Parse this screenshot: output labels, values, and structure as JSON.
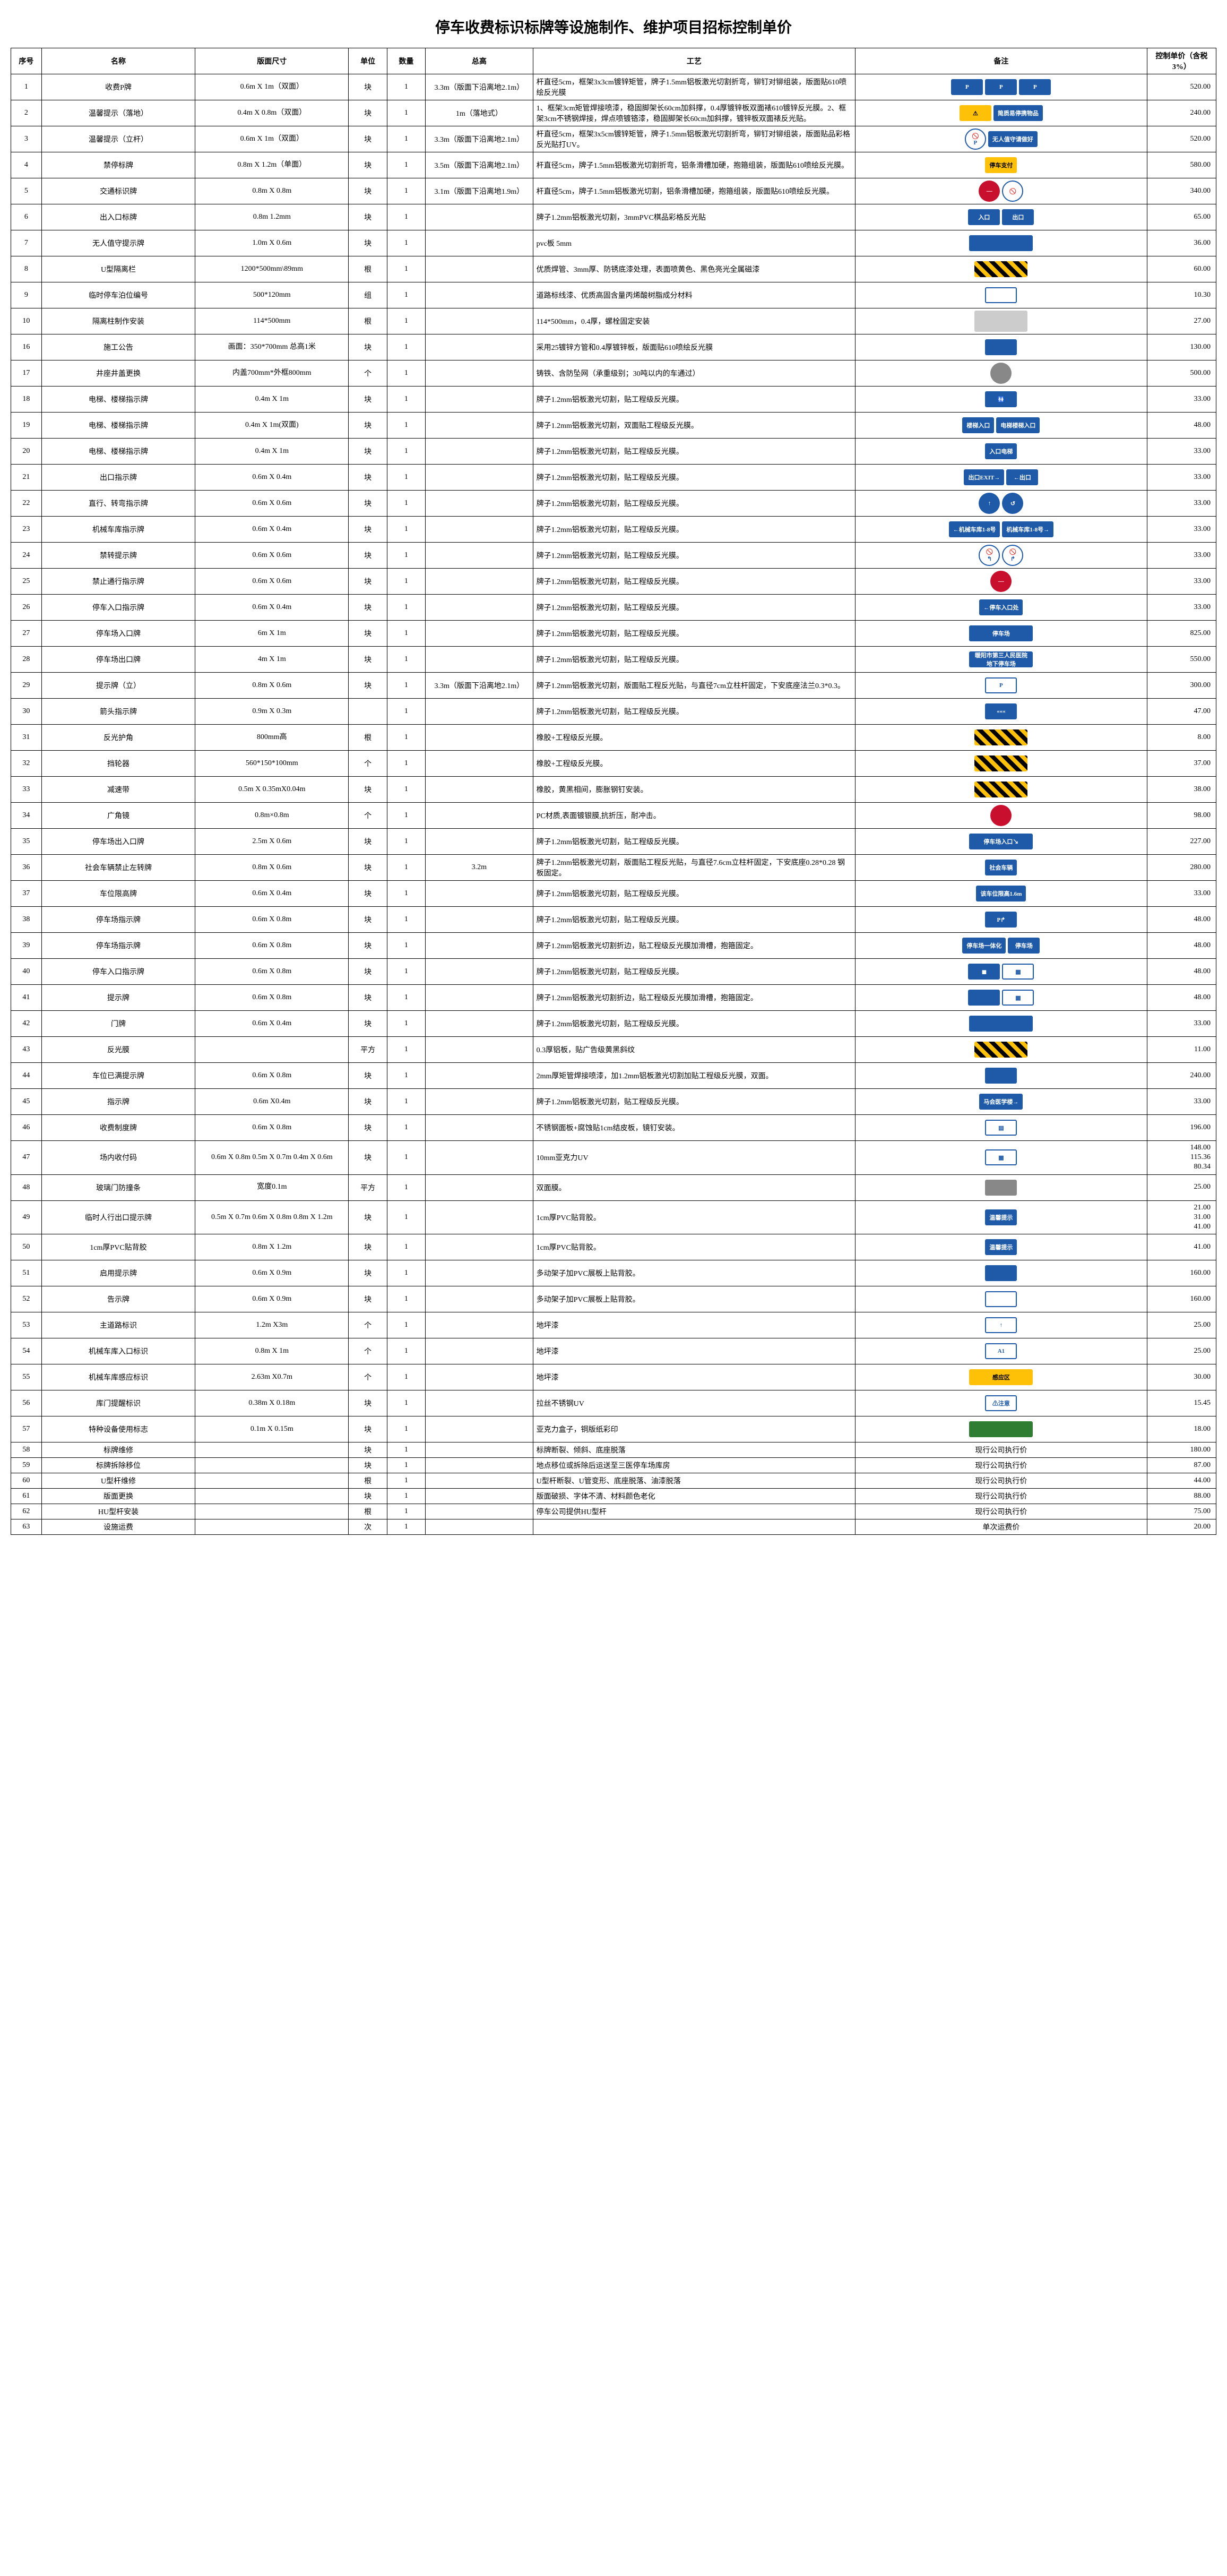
{
  "title": "停车收费标识标牌等设施制作、维护项目招标控制单价",
  "headers": {
    "seq": "序号",
    "name": "名称",
    "size": "版面尺寸",
    "unit": "单位",
    "qty": "数量",
    "total": "总高",
    "process": "工艺",
    "remark": "备注",
    "price": "控制单价（含税3%）"
  },
  "rows": [
    {
      "seq": "1",
      "name": "收费P牌",
      "size": "0.6m X 1m（双面）",
      "unit": "块",
      "qty": "1",
      "total": "3.3m（版面下沿离地2.1m）",
      "process": "杆直径5cm，框架3x3cm镀锌矩管，牌子1.5mm铝板激光切割折弯，铆钉对铆组装，版面贴610喷绘反光膜",
      "price": "520.00",
      "signs": [
        {
          "cls": "sign-blue",
          "txt": "P"
        },
        {
          "cls": "sign-blue",
          "txt": "P"
        },
        {
          "cls": "sign-blue",
          "txt": "P"
        }
      ]
    },
    {
      "seq": "2",
      "name": "温馨提示（落地）",
      "size": "0.4m X 0.8m（双面）",
      "unit": "块",
      "qty": "1",
      "total": "1m（落地式）",
      "process": "1、框架3cm矩管焊接喷漆，稳固脚架长60cm加斜撑，0.4厚镀锌板双面裱610镀锌反光膜。2、框架3cm不锈钢焊接，焊点喷镀铬漆，稳固脚架长60cm加斜撑，镀锌板双面裱反光贴。",
      "price": "240.00",
      "signs": [
        {
          "cls": "sign-yellow",
          "txt": "⚠"
        },
        {
          "cls": "sign-blue",
          "txt": "简质易停携物品"
        }
      ]
    },
    {
      "seq": "3",
      "name": "温馨提示（立杆）",
      "size": "0.6m X 1m（双面）",
      "unit": "块",
      "qty": "1",
      "total": "3.3m（版面下沿离地2.1m）",
      "process": "杆直径5cm，框架3x5cm镀锌矩管，牌子1.5mm铝板激光切割折弯，铆钉对铆组装，版面贴品彩格反光贴打UV。",
      "price": "520.00",
      "signs": [
        {
          "cls": "sign-white sign-circle",
          "txt": "🚫P"
        },
        {
          "cls": "sign-blue",
          "txt": "无人值守请做好"
        }
      ]
    },
    {
      "seq": "4",
      "name": "禁停标牌",
      "size": "0.8m X 1.2m（单面）",
      "unit": "块",
      "qty": "1",
      "total": "3.5m（版面下沿离地2.1m）",
      "process": "杆直径5cm，牌子1.5mm铝板激光切割折弯，铝条滑槽加硬，抱箍组装，版面贴610喷绘反光膜。",
      "price": "580.00",
      "signs": [
        {
          "cls": "sign-yellow",
          "txt": "停车支付"
        }
      ]
    },
    {
      "seq": "5",
      "name": "交通标识牌",
      "size": "0.8m X 0.8m",
      "unit": "块",
      "qty": "1",
      "total": "3.1m（版面下沿离地1.9m）",
      "process": "杆直径5cm，牌子1.5mm铝板激光切割，铝条滑槽加硬，抱箍组装，版面贴610喷绘反光膜。",
      "price": "340.00",
      "signs": [
        {
          "cls": "sign-red sign-circle",
          "txt": "—"
        },
        {
          "cls": "sign-white sign-circle",
          "txt": "🚫"
        }
      ]
    },
    {
      "seq": "6",
      "name": "出入口标牌",
      "size": "0.8m 1.2mm",
      "unit": "块",
      "qty": "1",
      "total": "",
      "process": "牌子1.2mm铝板激光切割，3mmPVC棋品彩格反光贴",
      "price": "65.00",
      "signs": [
        {
          "cls": "sign-blue",
          "txt": "入口"
        },
        {
          "cls": "sign-blue",
          "txt": "出口"
        }
      ]
    },
    {
      "seq": "7",
      "name": "无人值守提示牌",
      "size": "1.0m X 0.6m",
      "unit": "块",
      "qty": "1",
      "total": "",
      "process": "pvc板 5mm",
      "price": "36.00",
      "signs": [
        {
          "cls": "sign-blue sign-rect",
          "txt": ""
        }
      ]
    },
    {
      "seq": "8",
      "name": "U型隔离栏",
      "size": "1200*500mm\\89mm",
      "unit": "根",
      "qty": "1",
      "total": "",
      "process": "优质焊管、3mm厚、防锈底漆处理，表面喷黄色、黑色亮光全属磁漆",
      "price": "60.00",
      "signs": [
        {
          "cls": "sign-stripe",
          "txt": ""
        }
      ]
    },
    {
      "seq": "9",
      "name": "临时停车泊位编号",
      "size": "500*120mm",
      "unit": "组",
      "qty": "1",
      "total": "",
      "process": "道路标线漆、优质高固含量丙烯酸树脂成分材料",
      "price": "10.30",
      "signs": [
        {
          "cls": "sign-white",
          "txt": ""
        }
      ]
    },
    {
      "seq": "10",
      "name": "隔离柱制作安装",
      "size": "114*500mm",
      "unit": "根",
      "qty": "1",
      "total": "",
      "process": "114*500mm，0.4厚，螺栓固定安装",
      "price": "27.00",
      "signs": [
        {
          "cls": "photo",
          "txt": ""
        }
      ]
    },
    {
      "seq": "16",
      "name": "施工公告",
      "size": "画面：350*700mm 总高1米",
      "unit": "块",
      "qty": "1",
      "total": "",
      "process": "采用25镀锌方管和0.4厚镀锌板，版面贴610喷绘反光膜",
      "price": "130.00",
      "signs": [
        {
          "cls": "sign-blue",
          "txt": ""
        }
      ]
    },
    {
      "seq": "17",
      "name": "井座井盖更换",
      "size": "内盖700mm*外框800mm",
      "unit": "个",
      "qty": "1",
      "total": "",
      "process": "铸铁、含防坠网（承重级别；30吨以内的车通过）",
      "price": "500.00",
      "signs": [
        {
          "cls": "sign-gray sign-circle",
          "txt": ""
        }
      ]
    },
    {
      "seq": "18",
      "name": "电梯、楼梯指示牌",
      "size": "0.4m X 1m",
      "unit": "块",
      "qty": "1",
      "total": "",
      "process": "牌子1.2mm铝板激光切割，贴工程级反光膜。",
      "price": "33.00",
      "signs": [
        {
          "cls": "sign-blue",
          "txt": "🚻"
        }
      ]
    },
    {
      "seq": "19",
      "name": "电梯、楼梯指示牌",
      "size": "0.4m X 1m(双面)",
      "unit": "块",
      "qty": "1",
      "total": "",
      "process": "牌子1.2mm铝板激光切割，双面贴工程级反光膜。",
      "price": "48.00",
      "signs": [
        {
          "cls": "sign-blue",
          "txt": "楼梯入口"
        },
        {
          "cls": "sign-blue",
          "txt": "电梯楼梯入口"
        }
      ]
    },
    {
      "seq": "20",
      "name": "电梯、楼梯指示牌",
      "size": "0.4m X 1m",
      "unit": "块",
      "qty": "1",
      "total": "",
      "process": "牌子1.2mm铝板激光切割，贴工程级反光膜。",
      "price": "33.00",
      "signs": [
        {
          "cls": "sign-blue",
          "txt": "入口电梯"
        }
      ]
    },
    {
      "seq": "21",
      "name": "出口指示牌",
      "size": "0.6m X 0.4m",
      "unit": "块",
      "qty": "1",
      "total": "",
      "process": "牌子1.2mm铝板激光切割，贴工程级反光膜。",
      "price": "33.00",
      "signs": [
        {
          "cls": "sign-blue",
          "txt": "出口EXIT→"
        },
        {
          "cls": "sign-blue",
          "txt": "←出口"
        }
      ]
    },
    {
      "seq": "22",
      "name": "直行、转弯指示牌",
      "size": "0.6m X 0.6m",
      "unit": "块",
      "qty": "1",
      "total": "",
      "process": "牌子1.2mm铝板激光切割，贴工程级反光膜。",
      "price": "33.00",
      "signs": [
        {
          "cls": "sign-blue sign-circle",
          "txt": "↑"
        },
        {
          "cls": "sign-blue sign-circle",
          "txt": "↺"
        }
      ]
    },
    {
      "seq": "23",
      "name": "机械车库指示牌",
      "size": "0.6m X 0.4m",
      "unit": "块",
      "qty": "1",
      "total": "",
      "process": "牌子1.2mm铝板激光切割，贴工程级反光膜。",
      "price": "33.00",
      "signs": [
        {
          "cls": "sign-blue",
          "txt": "←机械车库1-8号"
        },
        {
          "cls": "sign-blue",
          "txt": "机械车库1-8号→"
        }
      ]
    },
    {
      "seq": "24",
      "name": "禁转提示牌",
      "size": "0.6m X 0.6m",
      "unit": "块",
      "qty": "1",
      "total": "",
      "process": "牌子1.2mm铝板激光切割，贴工程级反光膜。",
      "price": "33.00",
      "signs": [
        {
          "cls": "sign-white sign-circle",
          "txt": "🚫↰"
        },
        {
          "cls": "sign-white sign-circle",
          "txt": "🚫↱"
        }
      ]
    },
    {
      "seq": "25",
      "name": "禁止通行指示牌",
      "size": "0.6m X 0.6m",
      "unit": "块",
      "qty": "1",
      "total": "",
      "process": "牌子1.2mm铝板激光切割，贴工程级反光膜。",
      "price": "33.00",
      "signs": [
        {
          "cls": "sign-red sign-circle",
          "txt": "—"
        }
      ]
    },
    {
      "seq": "26",
      "name": "停车入口指示牌",
      "size": "0.6m X 0.4m",
      "unit": "块",
      "qty": "1",
      "total": "",
      "process": "牌子1.2mm铝板激光切割，贴工程级反光膜。",
      "price": "33.00",
      "signs": [
        {
          "cls": "sign-blue",
          "txt": "←停车入口处"
        }
      ]
    },
    {
      "seq": "27",
      "name": "停车场入口牌",
      "size": "6m X 1m",
      "unit": "块",
      "qty": "1",
      "total": "",
      "process": "牌子1.2mm铝板激光切割，贴工程级反光膜。",
      "price": "825.00",
      "signs": [
        {
          "cls": "sign-blue sign-rect",
          "txt": "停车场"
        }
      ]
    },
    {
      "seq": "28",
      "name": "停车场出口牌",
      "size": "4m X 1m",
      "unit": "块",
      "qty": "1",
      "total": "",
      "process": "牌子1.2mm铝板激光切割，贴工程级反光膜。",
      "price": "550.00",
      "signs": [
        {
          "cls": "sign-blue sign-rect",
          "txt": "暖阳市第三人民医院地下停车场"
        }
      ]
    },
    {
      "seq": "29",
      "name": "提示牌（立）",
      "size": "0.8m X 0.6m",
      "unit": "块",
      "qty": "1",
      "total": "3.3m（版面下沿离地2.1m）",
      "process": "牌子1.2mm铝板激光切割，版面贴工程反光贴，与直径7cm立柱杆固定，下安底座法兰0.3*0.3。",
      "price": "300.00",
      "signs": [
        {
          "cls": "sign-white",
          "txt": "P"
        }
      ]
    },
    {
      "seq": "30",
      "name": "箭头指示牌",
      "size": "0.9m X 0.3m",
      "unit": "",
      "qty": "1",
      "total": "",
      "process": "牌子1.2mm铝板激光切割，贴工程级反光膜。",
      "price": "47.00",
      "signs": [
        {
          "cls": "sign-blue",
          "txt": "«««"
        }
      ]
    },
    {
      "seq": "31",
      "name": "反光护角",
      "size": "800mm高",
      "unit": "根",
      "qty": "1",
      "total": "",
      "process": "橡胶+工程级反光膜。",
      "price": "8.00",
      "signs": [
        {
          "cls": "sign-stripe",
          "txt": ""
        }
      ]
    },
    {
      "seq": "32",
      "name": "挡轮器",
      "size": "560*150*100mm",
      "unit": "个",
      "qty": "1",
      "total": "",
      "process": "橡胶+工程级反光膜。",
      "price": "37.00",
      "signs": [
        {
          "cls": "sign-stripe",
          "txt": ""
        }
      ]
    },
    {
      "seq": "33",
      "name": "减速带",
      "size": "0.5m X 0.35mX0.04m",
      "unit": "块",
      "qty": "1",
      "total": "",
      "process": "橡胶，黄黑相间，膨胀钢钉安装。",
      "price": "38.00",
      "signs": [
        {
          "cls": "sign-stripe",
          "txt": ""
        }
      ]
    },
    {
      "seq": "34",
      "name": "广角镜",
      "size": "0.8m×0.8m",
      "unit": "个",
      "qty": "1",
      "total": "",
      "process": "PC材质,表面镀银膜,抗折压，耐冲击。",
      "price": "98.00",
      "signs": [
        {
          "cls": "sign-red sign-circle",
          "txt": ""
        }
      ]
    },
    {
      "seq": "35",
      "name": "停车场出入口牌",
      "size": "2.5m X 0.6m",
      "unit": "块",
      "qty": "1",
      "total": "",
      "process": "牌子1.2mm铝板激光切割，贴工程级反光膜。",
      "price": "227.00",
      "signs": [
        {
          "cls": "sign-blue sign-rect",
          "txt": "停车场入口↘"
        }
      ]
    },
    {
      "seq": "36",
      "name": "社会车辆禁止左转牌",
      "size": "0.8m X 0.6m",
      "unit": "块",
      "qty": "1",
      "total": "3.2m",
      "process": "牌子1.2mm铝板激光切割，版面贴工程反光贴，与直径7.6cm立柱杆固定，下安底座0.28*0.28 钢板固定。",
      "price": "280.00",
      "signs": [
        {
          "cls": "sign-blue",
          "txt": "社会车辆"
        }
      ]
    },
    {
      "seq": "37",
      "name": "车位限高牌",
      "size": "0.6m X 0.4m",
      "unit": "块",
      "qty": "1",
      "total": "",
      "process": "牌子1.2mm铝板激光切割，贴工程级反光膜。",
      "price": "33.00",
      "signs": [
        {
          "cls": "sign-blue",
          "txt": "该车位限高1.6m"
        }
      ]
    },
    {
      "seq": "38",
      "name": "停车场指示牌",
      "size": "0.6m X 0.8m",
      "unit": "块",
      "qty": "1",
      "total": "",
      "process": "牌子1.2mm铝板激光切割，贴工程级反光膜。",
      "price": "48.00",
      "signs": [
        {
          "cls": "sign-blue",
          "txt": "P↱"
        }
      ]
    },
    {
      "seq": "39",
      "name": "停车场指示牌",
      "size": "0.6m X 0.8m",
      "unit": "块",
      "qty": "1",
      "total": "",
      "process": "牌子1.2mm铝板激光切割折边，贴工程级反光膜加滑槽，抱箍固定。",
      "price": "48.00",
      "signs": [
        {
          "cls": "sign-blue",
          "txt": "停车场一体化"
        },
        {
          "cls": "sign-blue",
          "txt": "停车场"
        }
      ]
    },
    {
      "seq": "40",
      "name": "停车入口指示牌",
      "size": "0.6m X 0.8m",
      "unit": "块",
      "qty": "1",
      "total": "",
      "process": "牌子1.2mm铝板激光切割，贴工程级反光膜。",
      "price": "48.00",
      "signs": [
        {
          "cls": "sign-blue",
          "txt": "◼"
        },
        {
          "cls": "sign-white",
          "txt": "▦"
        }
      ]
    },
    {
      "seq": "41",
      "name": "提示牌",
      "size": "0.6m X 0.8m",
      "unit": "块",
      "qty": "1",
      "total": "",
      "process": "牌子1.2mm铝板激光切割折边，贴工程级反光膜加滑槽，抱箍固定。",
      "price": "48.00",
      "signs": [
        {
          "cls": "sign-blue",
          "txt": ""
        },
        {
          "cls": "sign-white",
          "txt": "▦"
        }
      ]
    },
    {
      "seq": "42",
      "name": "门牌",
      "size": "0.6m X 0.4m",
      "unit": "块",
      "qty": "1",
      "total": "",
      "process": "牌子1.2mm铝板激光切割，贴工程级反光膜。",
      "price": "33.00",
      "signs": [
        {
          "cls": "sign-blue sign-rect",
          "txt": ""
        }
      ]
    },
    {
      "seq": "43",
      "name": "反光膜",
      "size": "",
      "unit": "平方",
      "qty": "1",
      "total": "",
      "process": "0.3厚铝板，贴广告级黄黑斜纹",
      "price": "11.00",
      "signs": [
        {
          "cls": "sign-stripe",
          "txt": ""
        }
      ]
    },
    {
      "seq": "44",
      "name": "车位已满提示牌",
      "size": "0.6m X 0.8m",
      "unit": "块",
      "qty": "1",
      "total": "",
      "process": "2mm厚矩管焊接喷漆，加1.2mm铝板激光切割加贴工程级反光膜，双面。",
      "price": "240.00",
      "signs": [
        {
          "cls": "sign-blue",
          "txt": ""
        }
      ]
    },
    {
      "seq": "45",
      "name": "指示牌",
      "size": "0.6m X0.4m",
      "unit": "块",
      "qty": "1",
      "total": "",
      "process": "牌子1.2mm铝板激光切割，贴工程级反光膜。",
      "price": "33.00",
      "signs": [
        {
          "cls": "sign-blue",
          "txt": "马会医学楼→"
        }
      ]
    },
    {
      "seq": "46",
      "name": "收费制度牌",
      "size": "0.6m X 0.8m",
      "unit": "块",
      "qty": "1",
      "total": "",
      "process": "不锈钢面板+腐蚀贴1cm结皮板，镜钉安装。",
      "price": "196.00",
      "signs": [
        {
          "cls": "sign-white",
          "txt": "▤"
        }
      ]
    },
    {
      "seq": "47",
      "name": "场内收付码",
      "size": "0.6m X 0.8m 0.5m X 0.7m 0.4m X 0.6m",
      "unit": "块",
      "qty": "1",
      "total": "",
      "process": "10mm亚克力UV",
      "price": "148.00\n115.36\n80.34",
      "signs": [
        {
          "cls": "sign-white",
          "txt": "▦"
        }
      ]
    },
    {
      "seq": "48",
      "name": "玻璃门防撞条",
      "size": "宽度0.1m",
      "unit": "平方",
      "qty": "1",
      "total": "",
      "process": "双面膜。",
      "price": "25.00",
      "signs": [
        {
          "cls": "sign-gray",
          "txt": ""
        }
      ]
    },
    {
      "seq": "49",
      "name": "临时人行出口提示牌",
      "size": "0.5m X 0.7m 0.6m X 0.8m 0.8m X 1.2m",
      "unit": "块",
      "qty": "1",
      "total": "",
      "process": "1cm厚PVC贴背胶。",
      "price": "21.00\n31.00\n41.00",
      "signs": [
        {
          "cls": "sign-blue",
          "txt": "温馨提示"
        }
      ]
    },
    {
      "seq": "50",
      "name": "1cm厚PVC贴背胶",
      "size": "0.8m X 1.2m",
      "unit": "块",
      "qty": "1",
      "total": "",
      "process": "1cm厚PVC贴背胶。",
      "price": "41.00",
      "signs": [
        {
          "cls": "sign-blue",
          "txt": "温馨提示"
        }
      ]
    },
    {
      "seq": "51",
      "name": "启用提示牌",
      "size": "0.6m X 0.9m",
      "unit": "块",
      "qty": "1",
      "total": "",
      "process": "多动架子加PVC展板上贴背胶。",
      "price": "160.00",
      "signs": [
        {
          "cls": "sign-blue",
          "txt": ""
        }
      ]
    },
    {
      "seq": "52",
      "name": "告示牌",
      "size": "0.6m X 0.9m",
      "unit": "块",
      "qty": "1",
      "total": "",
      "process": "多动架子加PVC展板上贴背胶。",
      "price": "160.00",
      "signs": [
        {
          "cls": "sign-white",
          "txt": ""
        }
      ]
    },
    {
      "seq": "53",
      "name": "主道路标识",
      "size": "1.2m X3m",
      "unit": "个",
      "qty": "1",
      "total": "",
      "process": "地坪漆",
      "price": "25.00",
      "signs": [
        {
          "cls": "sign-white",
          "txt": "↑"
        }
      ]
    },
    {
      "seq": "54",
      "name": "机械车库入口标识",
      "size": "0.8m X 1m",
      "unit": "个",
      "qty": "1",
      "total": "",
      "process": "地坪漆",
      "price": "25.00",
      "signs": [
        {
          "cls": "sign-white",
          "txt": "A1"
        }
      ]
    },
    {
      "seq": "55",
      "name": "机械车库感应标识",
      "size": "2.63m X0.7m",
      "unit": "个",
      "qty": "1",
      "total": "",
      "process": "地坪漆",
      "price": "30.00",
      "signs": [
        {
          "cls": "sign-yellow sign-rect",
          "txt": "感应区"
        }
      ]
    },
    {
      "seq": "56",
      "name": "库门提醒标识",
      "size": "0.38m X 0.18m",
      "unit": "块",
      "qty": "1",
      "total": "",
      "process": "拉丝不锈钢UV",
      "price": "15.45",
      "signs": [
        {
          "cls": "sign-white",
          "txt": "⚠注意"
        }
      ]
    },
    {
      "seq": "57",
      "name": "特种设备使用标志",
      "size": "0.1m X 0.15m",
      "unit": "块",
      "qty": "1",
      "total": "",
      "process": "亚克力盒子，铜版纸彩印",
      "price": "18.00",
      "signs": [
        {
          "cls": "sign-green sign-rect",
          "txt": ""
        }
      ]
    },
    {
      "seq": "58",
      "name": "标牌维修",
      "size": "",
      "unit": "块",
      "qty": "1",
      "total": "",
      "process": "标牌断裂、倾斜、底座脱落",
      "price": "",
      "remark_text": "现行公司执行价",
      "price2": "180.00"
    },
    {
      "seq": "59",
      "name": "标牌拆除移位",
      "size": "",
      "unit": "块",
      "qty": "1",
      "total": "",
      "process": "地点移位或拆除后运送至三医停车场库房",
      "price": "",
      "remark_text": "现行公司执行价",
      "price2": "87.00"
    },
    {
      "seq": "60",
      "name": "U型杆维修",
      "size": "",
      "unit": "根",
      "qty": "1",
      "total": "",
      "process": "U型杆断裂、U管变形、底座脱落、油漆脱落",
      "price": "",
      "remark_text": "现行公司执行价",
      "price2": "44.00"
    },
    {
      "seq": "61",
      "name": "版面更换",
      "size": "",
      "unit": "块",
      "qty": "1",
      "total": "",
      "process": "版面破损、字体不清、材料颜色老化",
      "price": "",
      "remark_text": "现行公司执行价",
      "price2": "88.00"
    },
    {
      "seq": "62",
      "name": "HU型杆安装",
      "size": "",
      "unit": "根",
      "qty": "1",
      "total": "",
      "process": "停车公司提供HU型杆",
      "price": "",
      "remark_text": "现行公司执行价",
      "price2": "75.00"
    },
    {
      "seq": "63",
      "name": "设施运费",
      "size": "",
      "unit": "次",
      "qty": "1",
      "total": "",
      "process": "",
      "price": "",
      "remark_text": "单次运费价",
      "price2": "20.00"
    }
  ],
  "colors": {
    "blue": "#1e5aa8",
    "red": "#c8102e",
    "yellow": "#ffc107",
    "border": "#000000"
  }
}
